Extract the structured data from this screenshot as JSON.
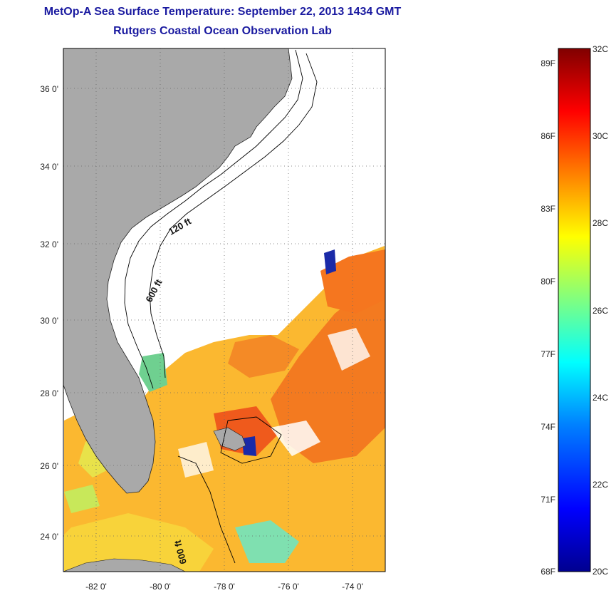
{
  "header": {
    "title": "MetOp-A Sea Surface Temperature:  September 22, 2013 1434 GMT",
    "subtitle": "Rutgers Coastal Ocean Observation Lab"
  },
  "map": {
    "lat_labels": [
      "36 0'",
      "34 0'",
      "32 0'",
      "30 0'",
      "28 0'",
      "26 0'",
      "24 0'"
    ],
    "lon_labels": [
      "-82 0'",
      "-80 0'",
      "-78 0'",
      "-76 0'",
      "-74 0'"
    ],
    "contour_labels": [
      "120 ft",
      "600 ft",
      "600 ft"
    ],
    "colors": {
      "land": "#a9a9a9",
      "ocean_no_data": "#ffffff",
      "isobath": "#000000"
    }
  },
  "colorbar": {
    "fahrenheit_labels": [
      "89F",
      "86F",
      "83F",
      "80F",
      "77F",
      "74F",
      "71F",
      "68F"
    ],
    "celsius_labels": [
      "32C",
      "30C",
      "28C",
      "26C",
      "24C",
      "22C",
      "20C"
    ],
    "range_c": [
      20,
      32
    ],
    "colors": [
      "#00008f",
      "#0000ff",
      "#0080ff",
      "#00ffff",
      "#80ff80",
      "#ffff00",
      "#ff8000",
      "#ff0000",
      "#800000"
    ]
  }
}
